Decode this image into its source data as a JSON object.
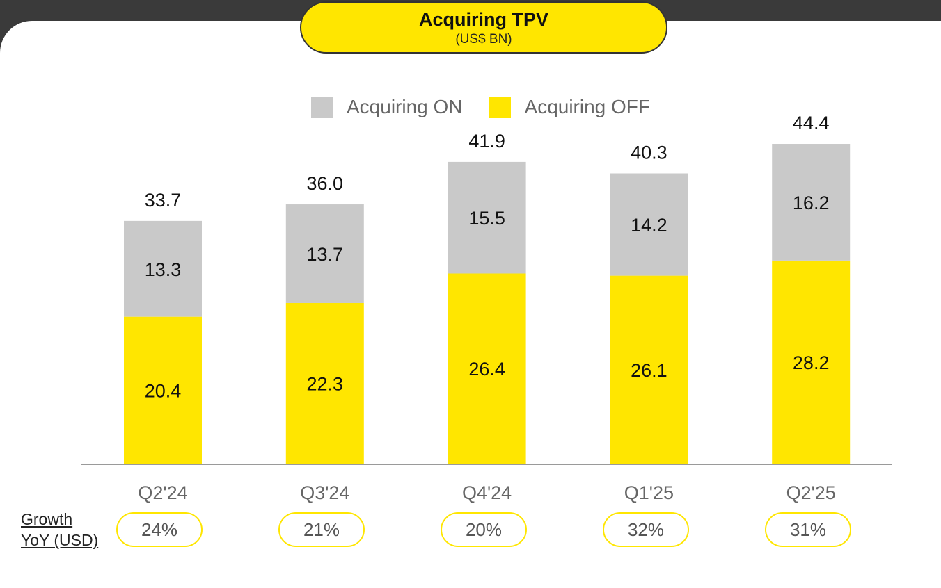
{
  "header": {
    "title": "Acquiring TPV",
    "subtitle": "(US$ BN)"
  },
  "legend": [
    {
      "label": "Acquiring ON",
      "color": "#c9c9c9"
    },
    {
      "label": "Acquiring OFF",
      "color": "#ffe600"
    }
  ],
  "growth": {
    "label_line1": "Growth",
    "label_line2": "YoY (USD)",
    "values": [
      "24%",
      "21%",
      "20%",
      "32%",
      "31%"
    ]
  },
  "chart_data": {
    "type": "bar",
    "stacked": true,
    "title": "Acquiring TPV",
    "subtitle": "(US$ BN)",
    "categories": [
      "Q2'24",
      "Q3'24",
      "Q4'24",
      "Q1'25",
      "Q2'25"
    ],
    "series": [
      {
        "name": "Acquiring OFF",
        "color": "#ffe600",
        "values": [
          20.4,
          22.3,
          26.4,
          26.1,
          28.2
        ]
      },
      {
        "name": "Acquiring ON",
        "color": "#c9c9c9",
        "values": [
          13.3,
          13.7,
          15.5,
          14.2,
          16.2
        ]
      }
    ],
    "totals": [
      33.7,
      36.0,
      41.9,
      40.3,
      44.4
    ],
    "total_labels": [
      "33.7",
      "36.0",
      "41.9",
      "40.3",
      "44.4"
    ],
    "off_labels": [
      "20.4",
      "22.3",
      "26.4",
      "26.1",
      "28.2"
    ],
    "on_labels": [
      "13.3",
      "13.7",
      "15.5",
      "14.2",
      "16.2"
    ],
    "growth_yoy": [
      "24%",
      "21%",
      "20%",
      "32%",
      "31%"
    ],
    "ylim": [
      0,
      46
    ],
    "grid": false,
    "legend_position": "top"
  }
}
